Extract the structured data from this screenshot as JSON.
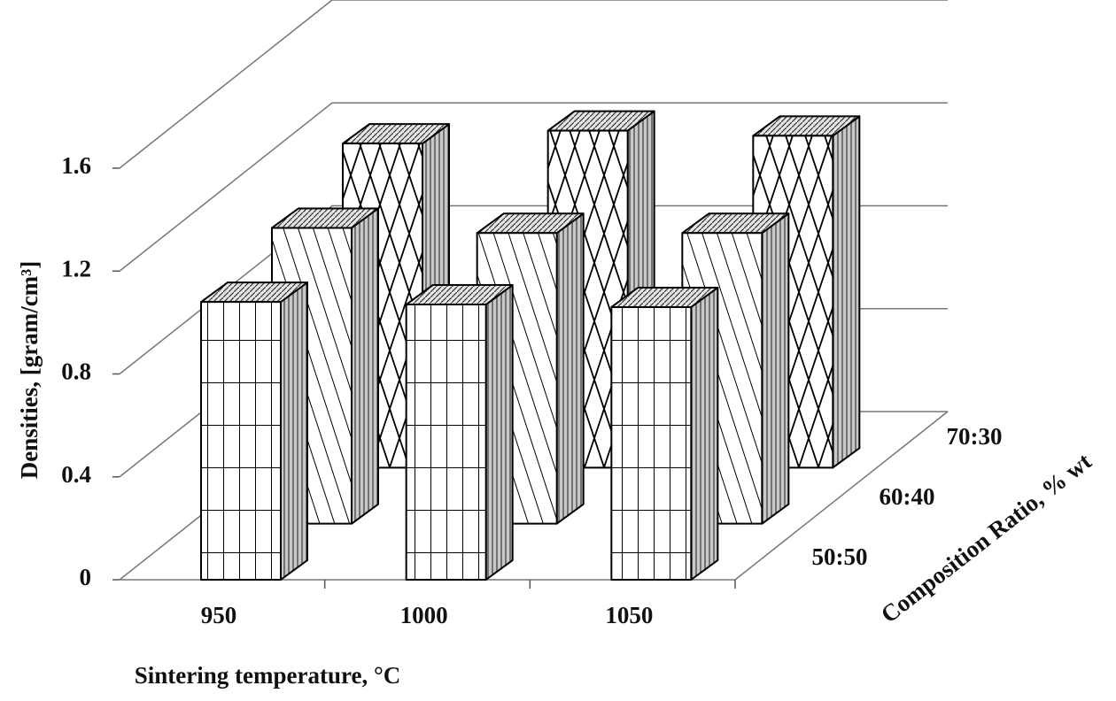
{
  "chart_data": {
    "type": "bar3d",
    "x_label": "Sintering temperature, °C",
    "y_label": "Densities, [gram/cm³]",
    "z_label": "Composition Ratio, % wt",
    "categories": [
      "950",
      "1000",
      "1050"
    ],
    "series": [
      {
        "name": "50:50",
        "pattern": "grid",
        "color": "#ffffff",
        "values": [
          1.08,
          1.07,
          1.06
        ]
      },
      {
        "name": "60:40",
        "pattern": "diagonal",
        "color": "#ffffff",
        "values": [
          1.15,
          1.13,
          1.13
        ]
      },
      {
        "name": "70:30",
        "pattern": "crosshatch",
        "color": "#ffffff",
        "values": [
          1.26,
          1.31,
          1.29
        ]
      }
    ],
    "ylim": [
      0,
      1.6
    ],
    "yticks": [
      0,
      0.4,
      0.8,
      1.2,
      1.6
    ],
    "grid": true
  }
}
